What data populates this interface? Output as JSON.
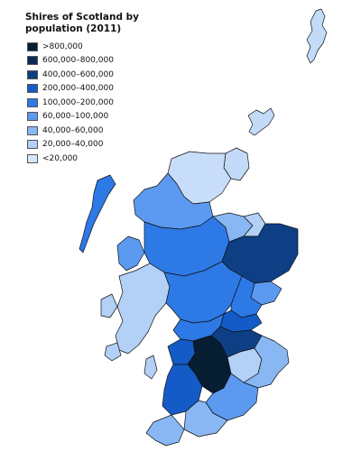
{
  "title": "Shires of Scotland by population (2011)",
  "legend": [
    {
      "label": ">800,000",
      "color": "#071d32"
    },
    {
      "label": "600,000–800,000",
      "color": "#0b2b55"
    },
    {
      "label": "400,000–600,000",
      "color": "#0e3f85"
    },
    {
      "label": "200,000–400,000",
      "color": "#145bc7"
    },
    {
      "label": "100,000–200,000",
      "color": "#2d79e6"
    },
    {
      "label": "60,000–100,000",
      "color": "#5b9af0"
    },
    {
      "label": "40,000–60,000",
      "color": "#89b7f3"
    },
    {
      "label": "20,000–40,000",
      "color": "#b3d0f6"
    },
    {
      "label": "<20,000",
      "color": "#d8e8fb"
    }
  ],
  "colors": {
    "border": "#111111",
    "background": "#ffffff"
  }
}
